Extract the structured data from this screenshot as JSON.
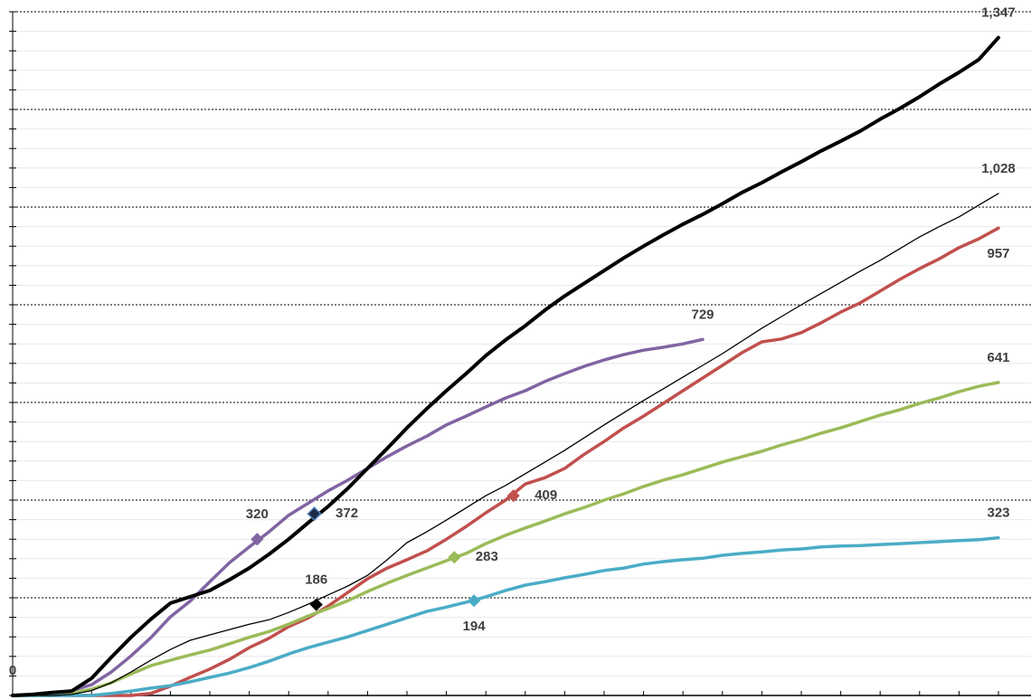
{
  "chart_data": {
    "type": "line",
    "xlim": [
      0,
      51
    ],
    "ylim": [
      0,
      1400
    ],
    "xticks": [
      0,
      2,
      4,
      6,
      8,
      10,
      12,
      14,
      16,
      18,
      20,
      22,
      24,
      26,
      28,
      30,
      32,
      34,
      36,
      38,
      40,
      42,
      44,
      46,
      48,
      50
    ],
    "yticks": [
      0,
      200,
      400,
      600,
      800,
      1000,
      1200,
      1400
    ],
    "minor_yticks": [
      40,
      80,
      120,
      160,
      240,
      280,
      320,
      360,
      440,
      480,
      520,
      560,
      640,
      680,
      720,
      760,
      840,
      880,
      920,
      960,
      1040,
      1080,
      1120,
      1160,
      1240,
      1280,
      1320,
      1360
    ],
    "grid": true,
    "series": [
      {
        "color": "#8064a2",
        "width": 3.5,
        "values": [
          0,
          0,
          2,
          10,
          22,
          48,
          81,
          118,
          161,
          193,
          233,
          272,
          304,
          335,
          369,
          394,
          419,
          441,
          465,
          489,
          511,
          531,
          554,
          572,
          591,
          609,
          624,
          643,
          659,
          674,
          687,
          698,
          707,
          713,
          720,
          729
        ],
        "labels": [
          {
            "x": 12.4,
            "value": 320,
            "marker": true,
            "position": "above"
          },
          {
            "x": 35,
            "value": 729,
            "marker": false,
            "position": "above"
          }
        ]
      },
      {
        "color": "#c0504d",
        "width": 3.5,
        "values": [
          0,
          0,
          0,
          0,
          0,
          0,
          0,
          4,
          19,
          37,
          54,
          74,
          98,
          117,
          141,
          159,
          183,
          211,
          239,
          261,
          278,
          296,
          320,
          346,
          374,
          400,
          433,
          446,
          465,
          494,
          520,
          548,
          572,
          598,
          624,
          650,
          676,
          702,
          724,
          730,
          743,
          763,
          785,
          804,
          828,
          852,
          874,
          894,
          917,
          935,
          957
        ],
        "labels": [
          {
            "x": 25.4,
            "value": 409,
            "marker": true,
            "position": "right"
          },
          {
            "x": 50,
            "value": 957,
            "marker": false,
            "position": "below"
          }
        ]
      },
      {
        "color": "#9bbb59",
        "width": 3.5,
        "values": [
          0,
          0,
          0,
          4,
          13,
          26,
          44,
          61,
          72,
          83,
          93,
          106,
          119,
          131,
          146,
          163,
          178,
          194,
          213,
          230,
          246,
          261,
          276,
          291,
          311,
          328,
          343,
          357,
          372,
          385,
          400,
          413,
          428,
          441,
          452,
          465,
          478,
          489,
          500,
          513,
          524,
          537,
          548,
          561,
          574,
          585,
          598,
          609,
          622,
          633,
          641
        ],
        "labels": [
          {
            "x": 22.4,
            "value": 283,
            "marker": true,
            "position": "right"
          },
          {
            "x": 50,
            "value": 641,
            "marker": false,
            "position": "above"
          }
        ]
      },
      {
        "color": "#4bacc6",
        "width": 3.5,
        "values": [
          0,
          0,
          0,
          0,
          0,
          4,
          9,
          15,
          20,
          28,
          37,
          46,
          57,
          70,
          85,
          98,
          109,
          120,
          133,
          146,
          159,
          172,
          181,
          191,
          202,
          215,
          226,
          233,
          241,
          248,
          256,
          261,
          269,
          274,
          278,
          281,
          287,
          291,
          294,
          298,
          300,
          304,
          306,
          307,
          309,
          311,
          313,
          315,
          317,
          319,
          323
        ],
        "labels": [
          {
            "x": 23.4,
            "value": 194,
            "marker": true,
            "position": "below"
          },
          {
            "x": 50,
            "value": 323,
            "marker": false,
            "position": "above"
          }
        ]
      },
      {
        "color": "#000000",
        "width": 1.3,
        "values": [
          0,
          0,
          0,
          2,
          10,
          26,
          48,
          72,
          94,
          113,
          124,
          135,
          146,
          155,
          170,
          187,
          206,
          224,
          246,
          278,
          313,
          335,
          359,
          384,
          409,
          430,
          454,
          478,
          502,
          528,
          554,
          579,
          604,
          628,
          652,
          676,
          700,
          726,
          752,
          776,
          800,
          823,
          846,
          869,
          891,
          915,
          939,
          960,
          980,
          1004,
          1028
        ],
        "labels": [
          {
            "x": 15.4,
            "value": 186,
            "marker": true,
            "position": "above"
          },
          {
            "x": 50,
            "value": 1028,
            "label": "1,028",
            "marker": false,
            "position": "above"
          }
        ]
      },
      {
        "color": "#000000",
        "width": 4,
        "values": [
          0,
          2,
          6,
          9,
          35,
          78,
          119,
          156,
          189,
          202,
          215,
          237,
          261,
          289,
          320,
          354,
          387,
          424,
          465,
          506,
          548,
          587,
          624,
          659,
          696,
          728,
          757,
          789,
          818,
          844,
          870,
          896,
          920,
          943,
          965,
          985,
          1007,
          1030,
          1050,
          1072,
          1093,
          1115,
          1135,
          1156,
          1180,
          1202,
          1226,
          1252,
          1276,
          1302,
          1347
        ],
        "labels": [
          {
            "x": 0,
            "value": 0,
            "marker": false,
            "position": "above"
          },
          {
            "x": 15.3,
            "value": 372,
            "marker": true,
            "fill": "#1f2a44",
            "stroke": "#4f81bd",
            "position": "right"
          },
          {
            "x": 50,
            "value": 1347,
            "label": "1,347",
            "marker": false,
            "position": "above"
          }
        ]
      }
    ]
  }
}
